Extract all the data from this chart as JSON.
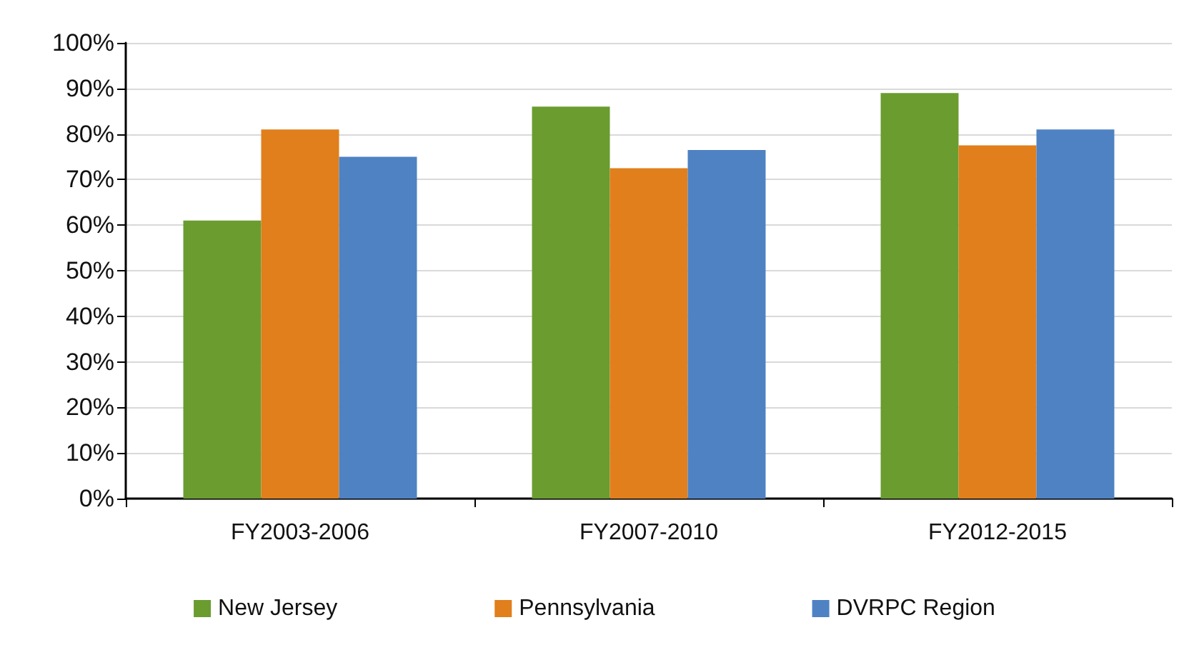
{
  "chart_data": {
    "type": "bar",
    "categories": [
      "FY2003-2006",
      "FY2007-2010",
      "FY2012-2015"
    ],
    "series": [
      {
        "name": "New Jersey",
        "color": "#6a9c30",
        "values": [
          61,
          86,
          89
        ]
      },
      {
        "name": "Pennsylvania",
        "color": "#e07f1c",
        "values": [
          81,
          72.5,
          77.5
        ]
      },
      {
        "name": "DVRPC Region",
        "color": "#4e82c3",
        "values": [
          75,
          76.5,
          81
        ]
      }
    ],
    "ylim": [
      0,
      100
    ],
    "yticks": [
      {
        "value": 0,
        "label": "0%"
      },
      {
        "value": 10,
        "label": "10%"
      },
      {
        "value": 20,
        "label": "20%"
      },
      {
        "value": 30,
        "label": "30%"
      },
      {
        "value": 40,
        "label": "40%"
      },
      {
        "value": 50,
        "label": "50%"
      },
      {
        "value": 60,
        "label": "60%"
      },
      {
        "value": 70,
        "label": "70%"
      },
      {
        "value": 80,
        "label": "80%"
      },
      {
        "value": 90,
        "label": "90%"
      },
      {
        "value": 100,
        "label": "100%"
      }
    ],
    "grid": "y",
    "legend": "bottom"
  }
}
